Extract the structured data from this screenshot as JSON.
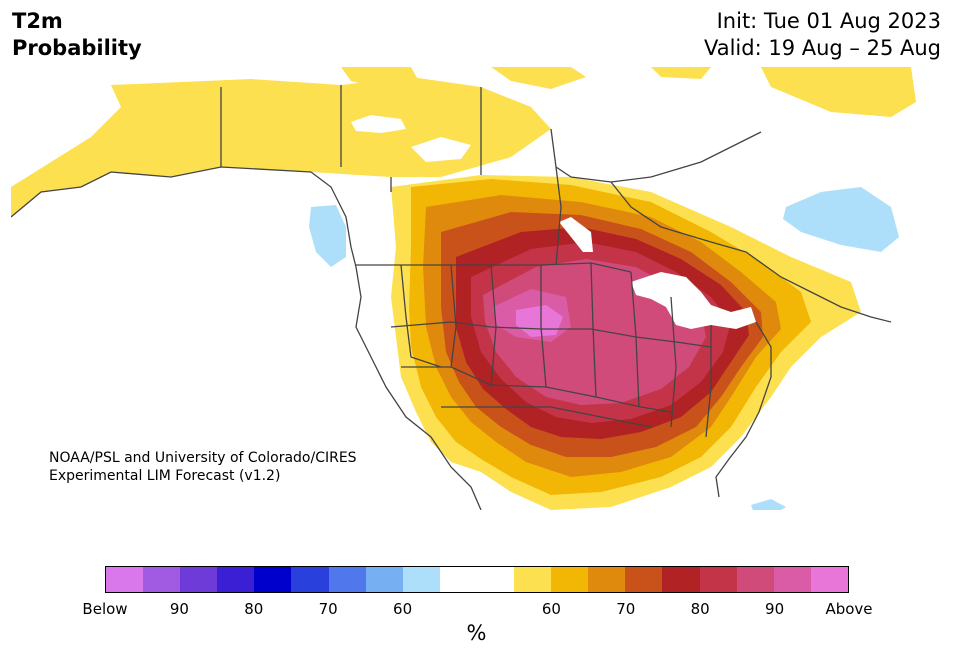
{
  "title": {
    "line1": "T2m",
    "line2": "Probability"
  },
  "dates": {
    "init": "Init: Tue 01 Aug 2023",
    "valid": "Valid: 19 Aug – 25 Aug"
  },
  "credit": {
    "line1": "NOAA/PSL and University of Colorado/CIRES",
    "line2": "Experimental LIM Forecast (v1.2)"
  },
  "colorbar": {
    "colors": [
      "#d878ea",
      "#a15ae2",
      "#6f3bd8",
      "#3a1fd4",
      "#0000cc",
      "#2940dc",
      "#5177ec",
      "#76b0f2",
      "#addffa",
      "#ffffff",
      "#ffffff",
      "#fde050",
      "#f2b705",
      "#e08a0d",
      "#c8521a",
      "#b02224",
      "#c33449",
      "#d04b7a",
      "#da5ca7",
      "#e875d8"
    ],
    "ticks": [
      "Below",
      "90",
      "80",
      "70",
      "60",
      "60",
      "70",
      "80",
      "90",
      "Above"
    ],
    "unit": "%"
  },
  "map": {
    "colors": {
      "yellow": "#fde050",
      "gold": "#f2b705",
      "orange": "#e08a0d",
      "darkorange": "#c8521a",
      "red": "#b02224",
      "crimson": "#c33449",
      "rose": "#d04b7a",
      "pink": "#da5ca7",
      "magenta": "#e875d8",
      "lightblue": "#addffa",
      "lakes": "#ffffff",
      "border": "#444444"
    }
  }
}
